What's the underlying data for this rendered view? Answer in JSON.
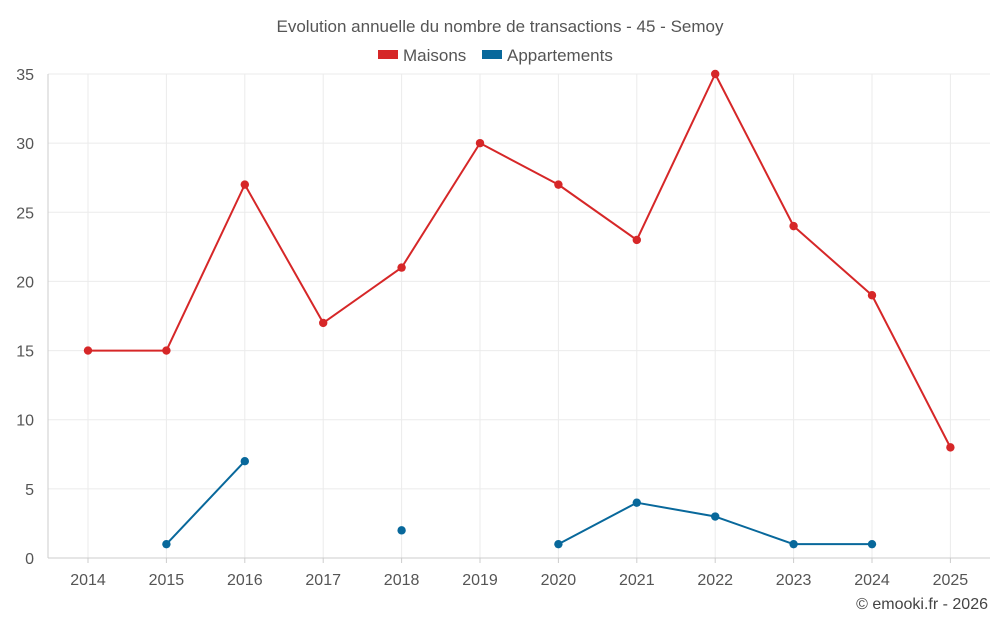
{
  "chart_data": {
    "type": "line",
    "title": "Evolution annuelle du nombre de transactions - 45 - Semoy",
    "categories": [
      "2014",
      "2015",
      "2016",
      "2017",
      "2018",
      "2019",
      "2020",
      "2021",
      "2022",
      "2023",
      "2024",
      "2025"
    ],
    "series": [
      {
        "name": "Maisons",
        "color": "#d62728",
        "values": [
          15,
          15,
          27,
          17,
          21,
          30,
          27,
          23,
          35,
          24,
          19,
          8
        ]
      },
      {
        "name": "Appartements",
        "color": "#08689b",
        "values": [
          null,
          1,
          7,
          null,
          2,
          null,
          1,
          4,
          3,
          1,
          1,
          null
        ]
      }
    ],
    "ylim": [
      0,
      35
    ],
    "yticks": [
      0,
      5,
      10,
      15,
      20,
      25,
      30,
      35
    ],
    "xlabel": "",
    "ylabel": "",
    "grid": true,
    "legend_position": "top-center"
  },
  "credit": "© emooki.fr - 2026"
}
